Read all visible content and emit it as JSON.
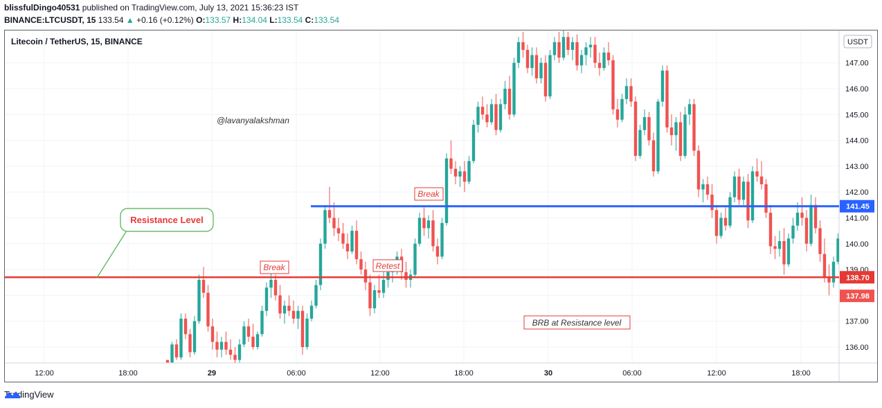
{
  "header": {
    "author": "blissfulDingo40531",
    "published_text": " published on TradingView.com, July 13, 2021 15:36:23 IST",
    "symbol": "BINANCE:LTCUSDT, 15",
    "last": "133.54",
    "change_arrow": "▲",
    "change": "+0.16 (+0.12%)",
    "o_label": "O:",
    "o_value": "133.57",
    "h_label": "H:",
    "h_value": "134.04",
    "l_label": "L:",
    "l_value": "133.54",
    "c_label": "C:",
    "c_value": "133.54"
  },
  "chart_title": "Litecoin / TetherUS, 15, BINANCE",
  "currency": "USDT",
  "watermark_text": "@lavanyalakshman",
  "annotations": {
    "resistance_callout": "Resistance Level",
    "break1": "Break",
    "retest": "Retest",
    "break2": "Break",
    "brb": "BRB at Resistance level"
  },
  "price_labels": {
    "blue_line": "141.45",
    "red_line": "138.70",
    "current": "137.98"
  },
  "colors": {
    "up": "#26a69a",
    "down": "#ef5350",
    "blue_line": "#2962ff",
    "red_line": "#e53935",
    "callout": "#4caf50"
  },
  "footer": {
    "brand": "TradingView"
  },
  "chart_data": {
    "type": "candlestick",
    "title": "Litecoin / TetherUS, 15, BINANCE",
    "y_ticks": [
      136.0,
      137.0,
      138.0,
      139.0,
      140.0,
      141.0,
      142.0,
      143.0,
      144.0,
      145.0,
      146.0,
      147.0
    ],
    "y_tick_labels": [
      "136.00",
      "137.00",
      "138.00",
      "139.00",
      "140.00",
      "141.00",
      "142.00",
      "143.00",
      "144.00",
      "145.00",
      "146.00",
      "147.00"
    ],
    "x_tick_labels": [
      "12:00",
      "18:00",
      "29",
      "06:00",
      "12:00",
      "18:00",
      "30",
      "06:00",
      "12:00",
      "18:00"
    ],
    "ylim": [
      135.4,
      148.2
    ],
    "horizontal_lines": [
      {
        "name": "resistance",
        "value": 138.7,
        "color": "#e53935"
      },
      {
        "name": "breakout",
        "value": 141.45,
        "color": "#2962ff"
      }
    ],
    "candles": [
      [
        135.5,
        135.5,
        135.4,
        135.4
      ],
      [
        135.4,
        136.2,
        135.4,
        136.1
      ],
      [
        136.1,
        136.3,
        135.5,
        135.6
      ],
      [
        135.6,
        137.3,
        135.5,
        137.1
      ],
      [
        137.1,
        137.3,
        136.3,
        136.5
      ],
      [
        136.5,
        136.7,
        135.6,
        135.8
      ],
      [
        135.8,
        137.2,
        135.7,
        137.0
      ],
      [
        137.0,
        138.8,
        136.9,
        138.6
      ],
      [
        138.6,
        139.1,
        137.9,
        138.1
      ],
      [
        138.1,
        138.4,
        136.6,
        136.8
      ],
      [
        136.8,
        137.1,
        135.9,
        136.2
      ],
      [
        136.2,
        136.6,
        135.6,
        135.9
      ],
      [
        135.9,
        136.4,
        135.6,
        136.2
      ],
      [
        136.2,
        136.6,
        135.7,
        135.9
      ],
      [
        135.9,
        136.3,
        135.5,
        135.7
      ],
      [
        135.7,
        136.0,
        135.3,
        135.5
      ],
      [
        135.5,
        136.3,
        135.4,
        136.1
      ],
      [
        136.1,
        137.0,
        136.0,
        136.8
      ],
      [
        136.8,
        137.1,
        136.2,
        136.4
      ],
      [
        136.4,
        136.9,
        135.9,
        136.0
      ],
      [
        136.0,
        136.6,
        135.9,
        136.5
      ],
      [
        136.5,
        137.6,
        136.4,
        137.4
      ],
      [
        137.4,
        138.5,
        137.2,
        138.3
      ],
      [
        138.3,
        139.0,
        137.9,
        138.6
      ],
      [
        138.6,
        138.8,
        137.8,
        138.0
      ],
      [
        138.0,
        138.4,
        137.1,
        137.3
      ],
      [
        137.3,
        137.8,
        136.9,
        137.6
      ],
      [
        137.6,
        138.0,
        137.2,
        137.4
      ],
      [
        137.4,
        137.8,
        136.9,
        137.1
      ],
      [
        137.1,
        137.6,
        136.7,
        137.4
      ],
      [
        137.4,
        137.6,
        135.7,
        136.0
      ],
      [
        136.0,
        137.3,
        135.9,
        137.1
      ],
      [
        137.1,
        137.8,
        137.0,
        137.6
      ],
      [
        137.6,
        138.6,
        137.5,
        138.4
      ],
      [
        138.4,
        140.2,
        138.2,
        140.0
      ],
      [
        140.0,
        141.5,
        139.8,
        141.3
      ],
      [
        141.3,
        142.2,
        140.8,
        141.0
      ],
      [
        141.0,
        141.6,
        140.3,
        140.6
      ],
      [
        140.6,
        141.0,
        140.1,
        140.4
      ],
      [
        140.4,
        140.8,
        139.8,
        140.0
      ],
      [
        140.0,
        140.4,
        139.4,
        139.7
      ],
      [
        139.7,
        140.7,
        139.6,
        140.5
      ],
      [
        140.5,
        140.9,
        139.2,
        139.4
      ],
      [
        139.4,
        139.7,
        138.8,
        139.0
      ],
      [
        139.0,
        139.3,
        138.2,
        138.5
      ],
      [
        138.5,
        138.8,
        137.2,
        137.5
      ],
      [
        137.5,
        138.4,
        137.3,
        138.2
      ],
      [
        138.2,
        138.8,
        137.9,
        138.1
      ],
      [
        138.1,
        138.9,
        137.9,
        138.6
      ],
      [
        138.6,
        139.2,
        138.3,
        138.9
      ],
      [
        138.9,
        139.4,
        138.5,
        139.1
      ],
      [
        139.1,
        139.7,
        138.8,
        139.5
      ],
      [
        139.5,
        139.8,
        138.6,
        138.9
      ],
      [
        138.9,
        139.3,
        138.3,
        138.6
      ],
      [
        138.6,
        139.0,
        138.3,
        138.8
      ],
      [
        138.8,
        140.2,
        138.7,
        140.0
      ],
      [
        140.0,
        141.2,
        139.9,
        141.0
      ],
      [
        141.0,
        141.4,
        140.3,
        140.6
      ],
      [
        140.6,
        141.1,
        140.2,
        140.9
      ],
      [
        140.9,
        141.3,
        139.7,
        139.9
      ],
      [
        139.9,
        140.2,
        139.2,
        139.5
      ],
      [
        139.5,
        141.0,
        139.4,
        140.8
      ],
      [
        140.8,
        143.5,
        140.7,
        143.3
      ],
      [
        143.3,
        144.0,
        142.7,
        142.9
      ],
      [
        142.9,
        143.2,
        142.3,
        142.6
      ],
      [
        142.6,
        143.0,
        142.2,
        142.8
      ],
      [
        142.8,
        143.2,
        142.0,
        142.4
      ],
      [
        142.4,
        143.4,
        142.3,
        143.2
      ],
      [
        143.2,
        144.8,
        143.1,
        144.6
      ],
      [
        144.6,
        145.5,
        144.3,
        145.3
      ],
      [
        145.3,
        145.7,
        144.8,
        145.0
      ],
      [
        145.0,
        145.4,
        144.5,
        144.7
      ],
      [
        144.7,
        145.6,
        144.6,
        145.4
      ],
      [
        145.4,
        145.8,
        144.2,
        144.4
      ],
      [
        144.4,
        145.6,
        144.3,
        145.4
      ],
      [
        145.4,
        146.3,
        145.2,
        146.0
      ],
      [
        146.0,
        146.5,
        144.8,
        145.0
      ],
      [
        145.0,
        147.2,
        144.9,
        147.0
      ],
      [
        147.0,
        148.0,
        146.8,
        147.8
      ],
      [
        147.8,
        148.2,
        147.2,
        147.5
      ],
      [
        147.5,
        147.7,
        146.6,
        146.8
      ],
      [
        146.8,
        147.6,
        146.5,
        147.3
      ],
      [
        147.3,
        147.6,
        146.2,
        146.4
      ],
      [
        146.4,
        147.2,
        146.2,
        147.0
      ],
      [
        147.0,
        147.3,
        145.5,
        145.7
      ],
      [
        145.7,
        147.5,
        145.6,
        147.3
      ],
      [
        147.3,
        148.0,
        147.1,
        147.8
      ],
      [
        147.8,
        148.2,
        147.0,
        147.2
      ],
      [
        147.2,
        148.3,
        147.1,
        148.0
      ],
      [
        148.0,
        148.2,
        147.3,
        147.5
      ],
      [
        147.5,
        148.0,
        147.1,
        147.8
      ],
      [
        147.8,
        148.1,
        146.7,
        146.9
      ],
      [
        146.9,
        147.5,
        146.6,
        147.3
      ],
      [
        147.3,
        147.8,
        146.9,
        147.6
      ],
      [
        147.6,
        148.0,
        147.2,
        147.7
      ],
      [
        147.7,
        148.0,
        146.8,
        147.0
      ],
      [
        147.0,
        147.4,
        146.5,
        146.8
      ],
      [
        146.8,
        147.6,
        146.7,
        147.4
      ],
      [
        147.4,
        147.8,
        146.9,
        147.1
      ],
      [
        147.1,
        147.3,
        145.0,
        145.2
      ],
      [
        145.2,
        145.6,
        144.5,
        144.8
      ],
      [
        144.8,
        145.8,
        144.7,
        145.6
      ],
      [
        145.6,
        146.4,
        145.4,
        146.1
      ],
      [
        146.1,
        146.4,
        145.3,
        145.5
      ],
      [
        145.5,
        145.7,
        143.2,
        143.4
      ],
      [
        143.4,
        144.6,
        143.3,
        144.4
      ],
      [
        144.4,
        145.2,
        144.2,
        144.9
      ],
      [
        144.9,
        145.1,
        143.8,
        144.0
      ],
      [
        144.0,
        144.3,
        142.6,
        142.8
      ],
      [
        142.8,
        145.6,
        142.7,
        145.5
      ],
      [
        145.5,
        146.9,
        145.3,
        146.7
      ],
      [
        146.7,
        146.9,
        144.3,
        144.5
      ],
      [
        144.5,
        145.0,
        143.8,
        144.2
      ],
      [
        144.2,
        144.9,
        143.6,
        144.7
      ],
      [
        144.7,
        145.1,
        143.2,
        143.4
      ],
      [
        143.4,
        145.3,
        143.3,
        145.0
      ],
      [
        145.0,
        145.6,
        144.6,
        145.4
      ],
      [
        145.4,
        145.6,
        143.4,
        143.6
      ],
      [
        143.6,
        143.8,
        141.8,
        142.1
      ],
      [
        142.1,
        142.5,
        141.6,
        142.3
      ],
      [
        142.3,
        142.6,
        141.7,
        141.9
      ],
      [
        141.9,
        142.3,
        141.0,
        141.3
      ],
      [
        141.3,
        141.5,
        140.0,
        140.3
      ],
      [
        140.3,
        141.2,
        140.2,
        141.0
      ],
      [
        141.0,
        141.4,
        140.5,
        140.7
      ],
      [
        140.7,
        142.0,
        140.6,
        141.8
      ],
      [
        141.8,
        142.8,
        141.6,
        142.6
      ],
      [
        142.6,
        142.9,
        141.5,
        141.7
      ],
      [
        141.7,
        142.6,
        141.5,
        142.4
      ],
      [
        142.4,
        142.7,
        140.6,
        140.9
      ],
      [
        140.9,
        143.0,
        140.8,
        142.8
      ],
      [
        142.8,
        143.3,
        142.4,
        142.6
      ],
      [
        142.6,
        143.2,
        142.1,
        142.3
      ],
      [
        142.3,
        142.5,
        141.0,
        141.2
      ],
      [
        141.2,
        141.5,
        139.6,
        139.9
      ],
      [
        139.9,
        140.3,
        139.4,
        139.8
      ],
      [
        139.8,
        140.5,
        139.5,
        140.1
      ],
      [
        140.1,
        140.6,
        138.8,
        139.2
      ],
      [
        139.2,
        140.4,
        139.1,
        140.2
      ],
      [
        140.2,
        141.0,
        140.0,
        140.7
      ],
      [
        140.7,
        141.6,
        140.5,
        141.2
      ],
      [
        141.2,
        141.8,
        140.7,
        141.0
      ],
      [
        141.0,
        141.3,
        139.7,
        140.0
      ],
      [
        140.0,
        141.9,
        139.9,
        141.5
      ],
      [
        141.5,
        141.8,
        140.4,
        140.6
      ],
      [
        140.6,
        140.9,
        139.3,
        139.6
      ],
      [
        139.6,
        140.2,
        138.5,
        138.7
      ],
      [
        138.7,
        139.2,
        138.0,
        138.5
      ],
      [
        138.5,
        139.5,
        138.3,
        139.3
      ],
      [
        139.3,
        140.4,
        139.2,
        140.2
      ],
      [
        140.2,
        140.7,
        139.6,
        139.8
      ],
      [
        139.8,
        140.0,
        138.5,
        138.9
      ],
      [
        138.9,
        139.3,
        137.3,
        137.98
      ]
    ]
  }
}
